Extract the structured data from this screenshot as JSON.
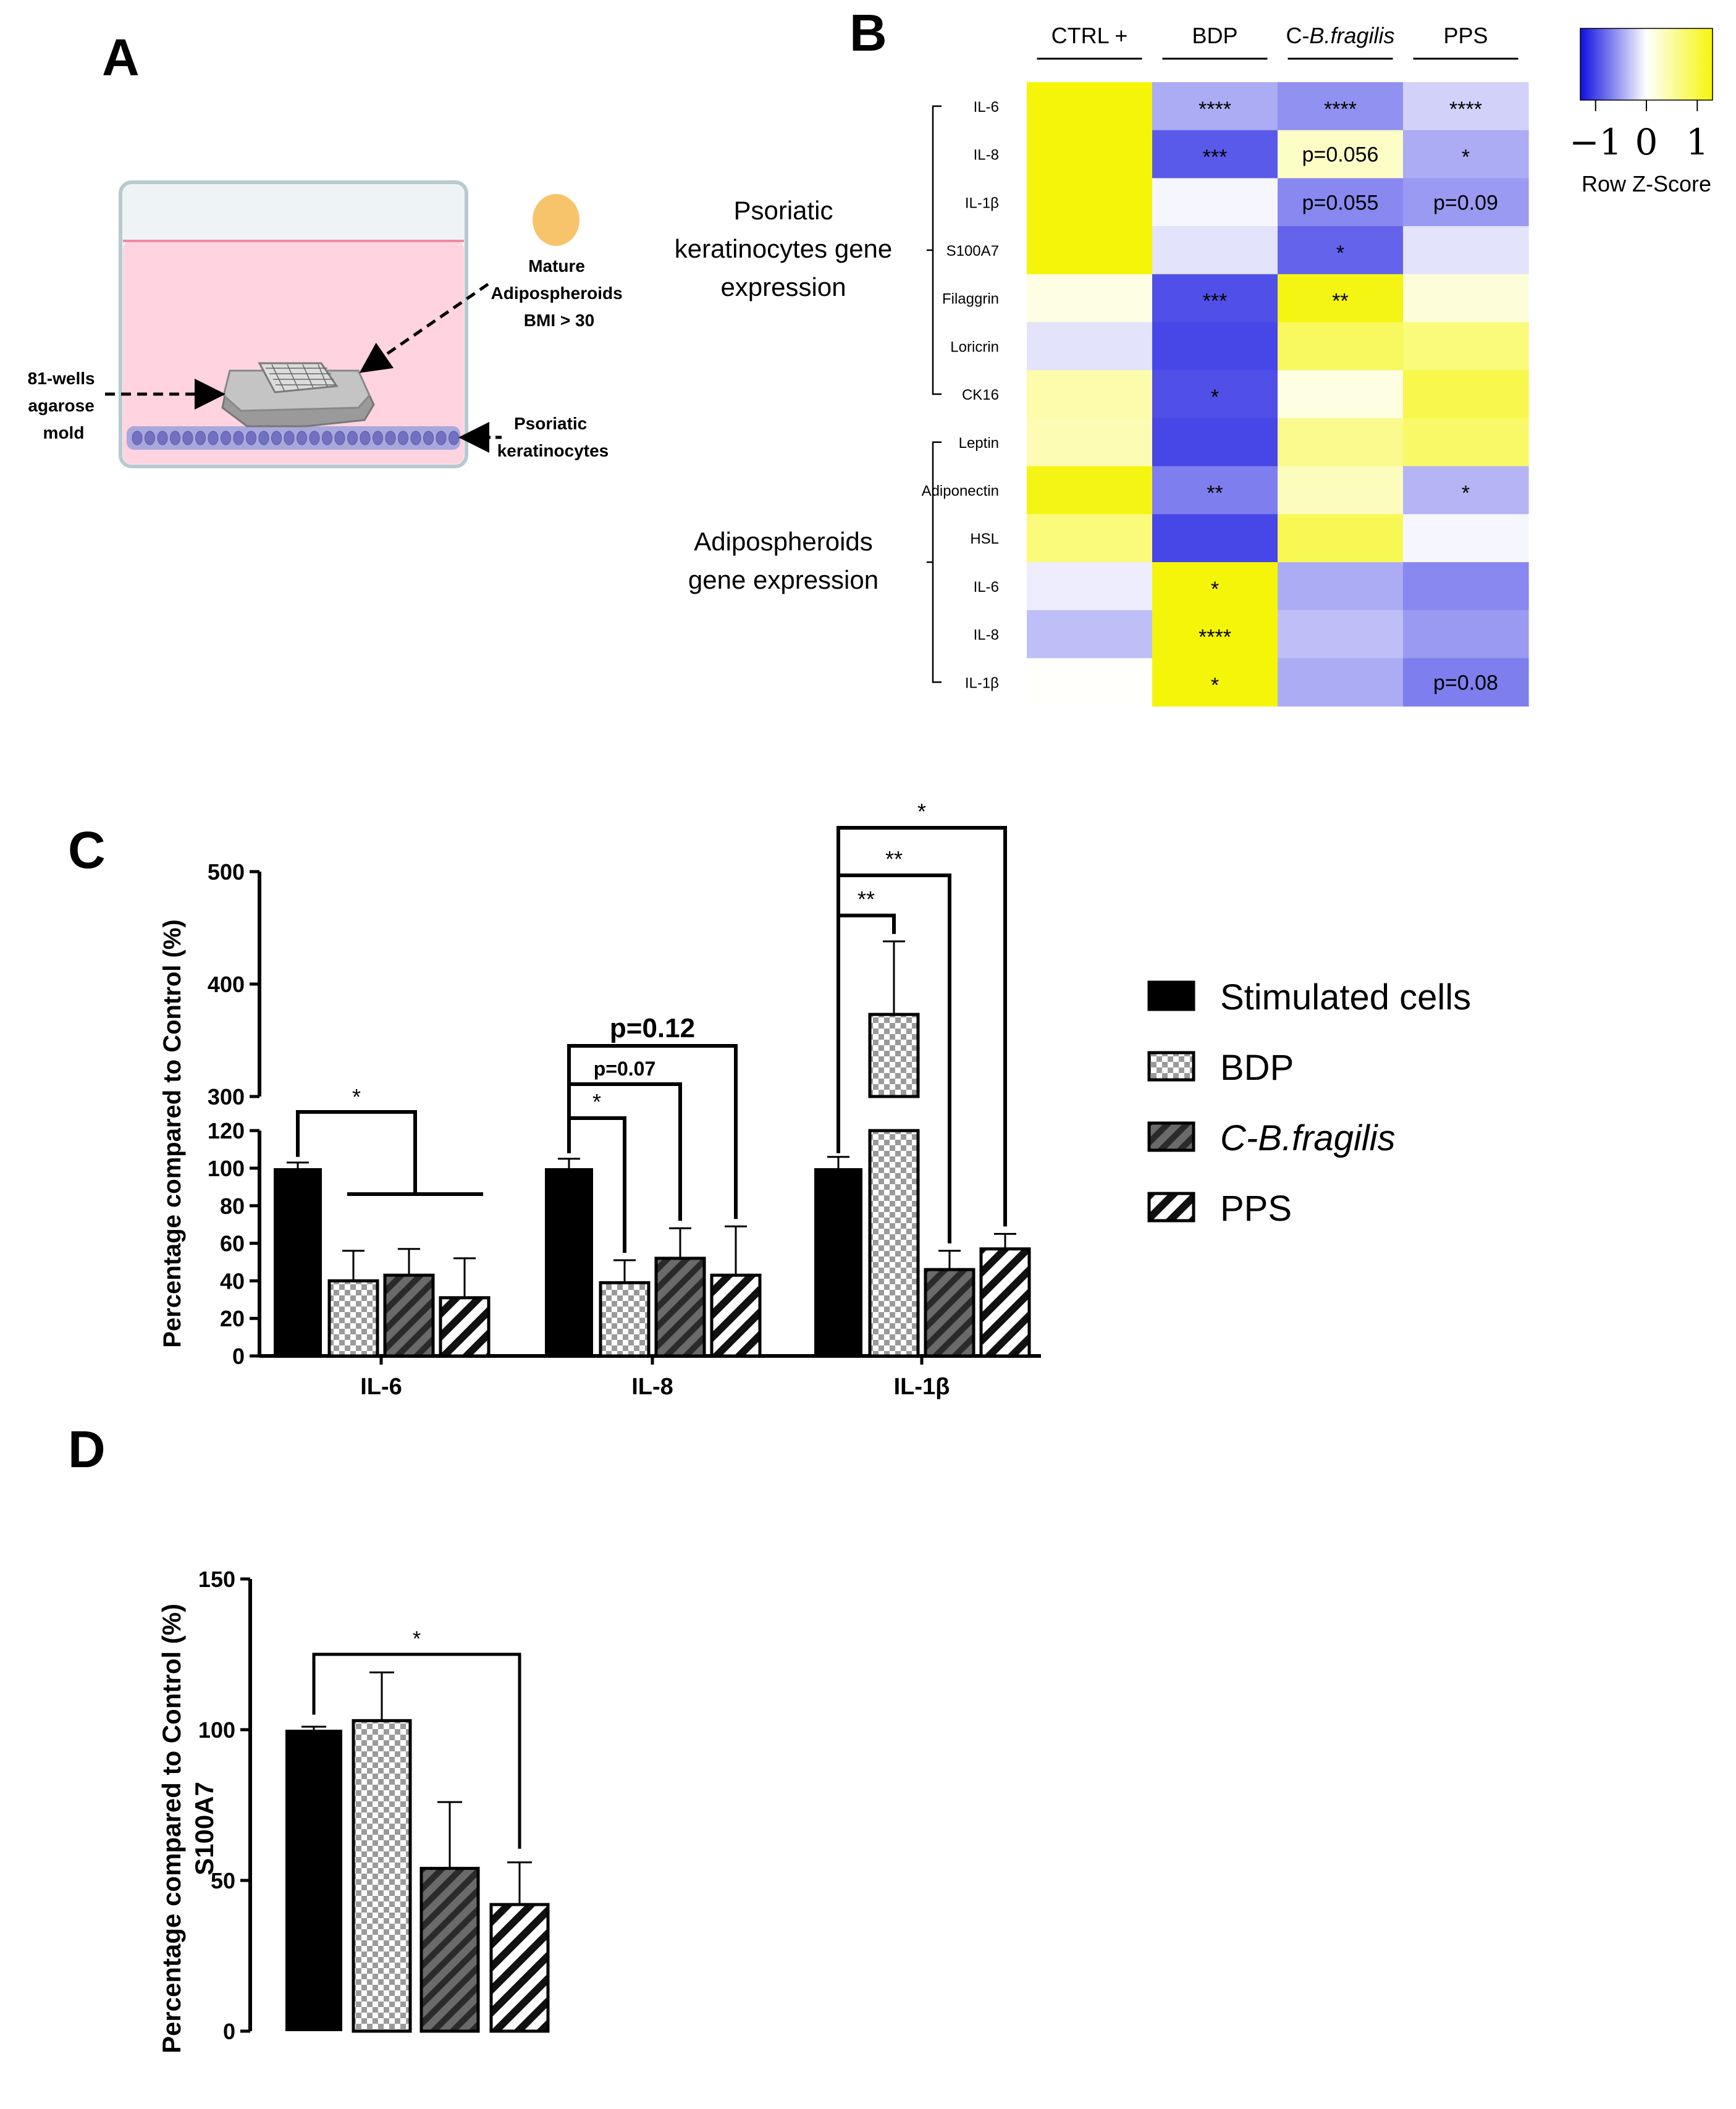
{
  "panels": {
    "a": "A",
    "b": "B",
    "c": "C",
    "d": "D"
  },
  "schematic": {
    "spheroid_label_lines": [
      "Mature",
      "Adipospheroids",
      "BMI > 30"
    ],
    "mold_label_lines": [
      "81-wells",
      "agarose",
      "mold"
    ],
    "cells_label_lines": [
      "Psoriatic",
      "keratinocytes"
    ],
    "colors": {
      "medium": "#ffd3df",
      "spheroid": "#f7c46c",
      "cells": "#a9a8dd"
    }
  },
  "chart_data": [
    {
      "id": "heatmap",
      "type": "heatmap",
      "columns": [
        "CTRL +",
        "BDP",
        "C-B.fragilis",
        "PPS"
      ],
      "column_label_parts": [
        [
          "CTRL +",
          ""
        ],
        [
          "BDP",
          ""
        ],
        [
          "C-",
          "B.fragilis"
        ],
        [
          "PPS",
          ""
        ]
      ],
      "rows": [
        "IL-6",
        "IL-8",
        "IL-1β",
        "S100A7",
        "Filaggrin",
        "Loricrin",
        "CK16",
        "Leptin",
        "Adiponectin",
        "HSL",
        "IL-6",
        "IL-8",
        "IL-1β"
      ],
      "z": [
        [
          1.3,
          -0.45,
          -0.6,
          -0.25
        ],
        [
          1.3,
          -0.9,
          0.3,
          -0.45
        ],
        [
          1.3,
          -0.05,
          -0.65,
          -0.55
        ],
        [
          1.3,
          -0.15,
          -0.85,
          -0.15
        ],
        [
          0.15,
          -0.95,
          1.25,
          0.2
        ],
        [
          -0.15,
          -1.0,
          0.85,
          0.7
        ],
        [
          0.45,
          -0.95,
          0.15,
          0.95
        ],
        [
          0.4,
          -1.0,
          0.6,
          0.8
        ],
        [
          1.25,
          -0.7,
          0.35,
          -0.4
        ],
        [
          0.7,
          -1.0,
          0.9,
          -0.05
        ],
        [
          -0.1,
          1.3,
          -0.45,
          -0.65
        ],
        [
          -0.35,
          1.3,
          -0.35,
          -0.55
        ],
        [
          0.02,
          1.3,
          -0.45,
          -0.7
        ]
      ],
      "annotations": [
        [
          "",
          "****",
          "****",
          "****"
        ],
        [
          "",
          "***",
          "p=0.056",
          "*"
        ],
        [
          "",
          "",
          "p=0.055",
          "p=0.09"
        ],
        [
          "",
          "",
          "*",
          ""
        ],
        [
          "",
          "***",
          "**",
          ""
        ],
        [
          "",
          "",
          "",
          ""
        ],
        [
          "",
          "*",
          "",
          ""
        ],
        [
          "",
          "",
          "",
          ""
        ],
        [
          "",
          "**",
          "",
          "*"
        ],
        [
          "",
          "",
          "",
          ""
        ],
        [
          "",
          "*",
          "",
          ""
        ],
        [
          "",
          "****",
          "",
          ""
        ],
        [
          "",
          "*",
          "",
          "p=0.08"
        ]
      ],
      "row_groups": [
        {
          "label_lines": [
            "Psoriatic",
            "keratinocytes gene",
            "expression"
          ],
          "from": 0,
          "to": 6
        },
        {
          "label_lines": [
            "Adipospheroids",
            "gene expression"
          ],
          "from": 7,
          "to": 12
        }
      ],
      "colorscale": {
        "low": "#1010e0",
        "mid": "#ffffff",
        "high": "#f5f50a",
        "range": [
          -1.3,
          1.3
        ]
      },
      "legend": {
        "title": "Row Z-Score",
        "ticks": [
          "−1",
          "0",
          "1"
        ],
        "tick_values": [
          -1,
          0,
          1
        ]
      }
    },
    {
      "id": "cytokine-bars",
      "type": "bar",
      "title": "",
      "ylabel": "Percentage compared to Control (%)",
      "categories": [
        "IL-6",
        "IL-8",
        "IL-1β"
      ],
      "series": [
        {
          "name": "Stimulated cells",
          "values": [
            100,
            100,
            100
          ],
          "errors": [
            3,
            5,
            6
          ]
        },
        {
          "name": "BDP",
          "values": [
            40,
            39,
            373
          ],
          "errors": [
            16,
            12,
            65
          ]
        },
        {
          "name": "C-B.fragilis",
          "values": [
            43,
            52,
            46
          ],
          "errors": [
            14,
            16,
            10
          ]
        },
        {
          "name": "PPS",
          "values": [
            31,
            43,
            57
          ],
          "errors": [
            21,
            26,
            8
          ]
        }
      ],
      "legend_label_parts": [
        [
          "Stimulated cells",
          ""
        ],
        [
          "BDP",
          ""
        ],
        [
          "C-",
          "B.fragilis"
        ],
        [
          "PPS",
          ""
        ]
      ],
      "axis_break": {
        "lower": [
          0,
          120
        ],
        "upper": [
          300,
          500
        ]
      },
      "yticks_lower": [
        0,
        20,
        40,
        60,
        80,
        100,
        120
      ],
      "yticks_upper": [
        300,
        400,
        500
      ],
      "significance": [
        {
          "category": 0,
          "from": 0,
          "to": "1-3",
          "label": "*"
        },
        {
          "category": 1,
          "from": 0,
          "to": 1,
          "label": "*"
        },
        {
          "category": 1,
          "from": 0,
          "to": 2,
          "label": "p=0.07"
        },
        {
          "category": 1,
          "from": 0,
          "to": 3,
          "label": "p=0.12"
        },
        {
          "category": 2,
          "from": 0,
          "to": 1,
          "label": "**"
        },
        {
          "category": 2,
          "from": 0,
          "to": 2,
          "label": "**"
        },
        {
          "category": 2,
          "from": 0,
          "to": 3,
          "label": "*"
        }
      ],
      "legend_position": "right"
    },
    {
      "id": "s100a7-bars",
      "type": "bar",
      "ylabel_lines": [
        "Percentage compared to Control (%)",
        "S100A7"
      ],
      "categories": [
        "Stimulated cells",
        "BDP",
        "C-B.fragilis",
        "PPS"
      ],
      "values": [
        100,
        103,
        54,
        42
      ],
      "errors": [
        1,
        16,
        22,
        14
      ],
      "ylim": [
        0,
        150
      ],
      "yticks": [
        0,
        50,
        100,
        150
      ],
      "significance": [
        {
          "from": 0,
          "to": 3,
          "label": "*"
        }
      ]
    }
  ]
}
